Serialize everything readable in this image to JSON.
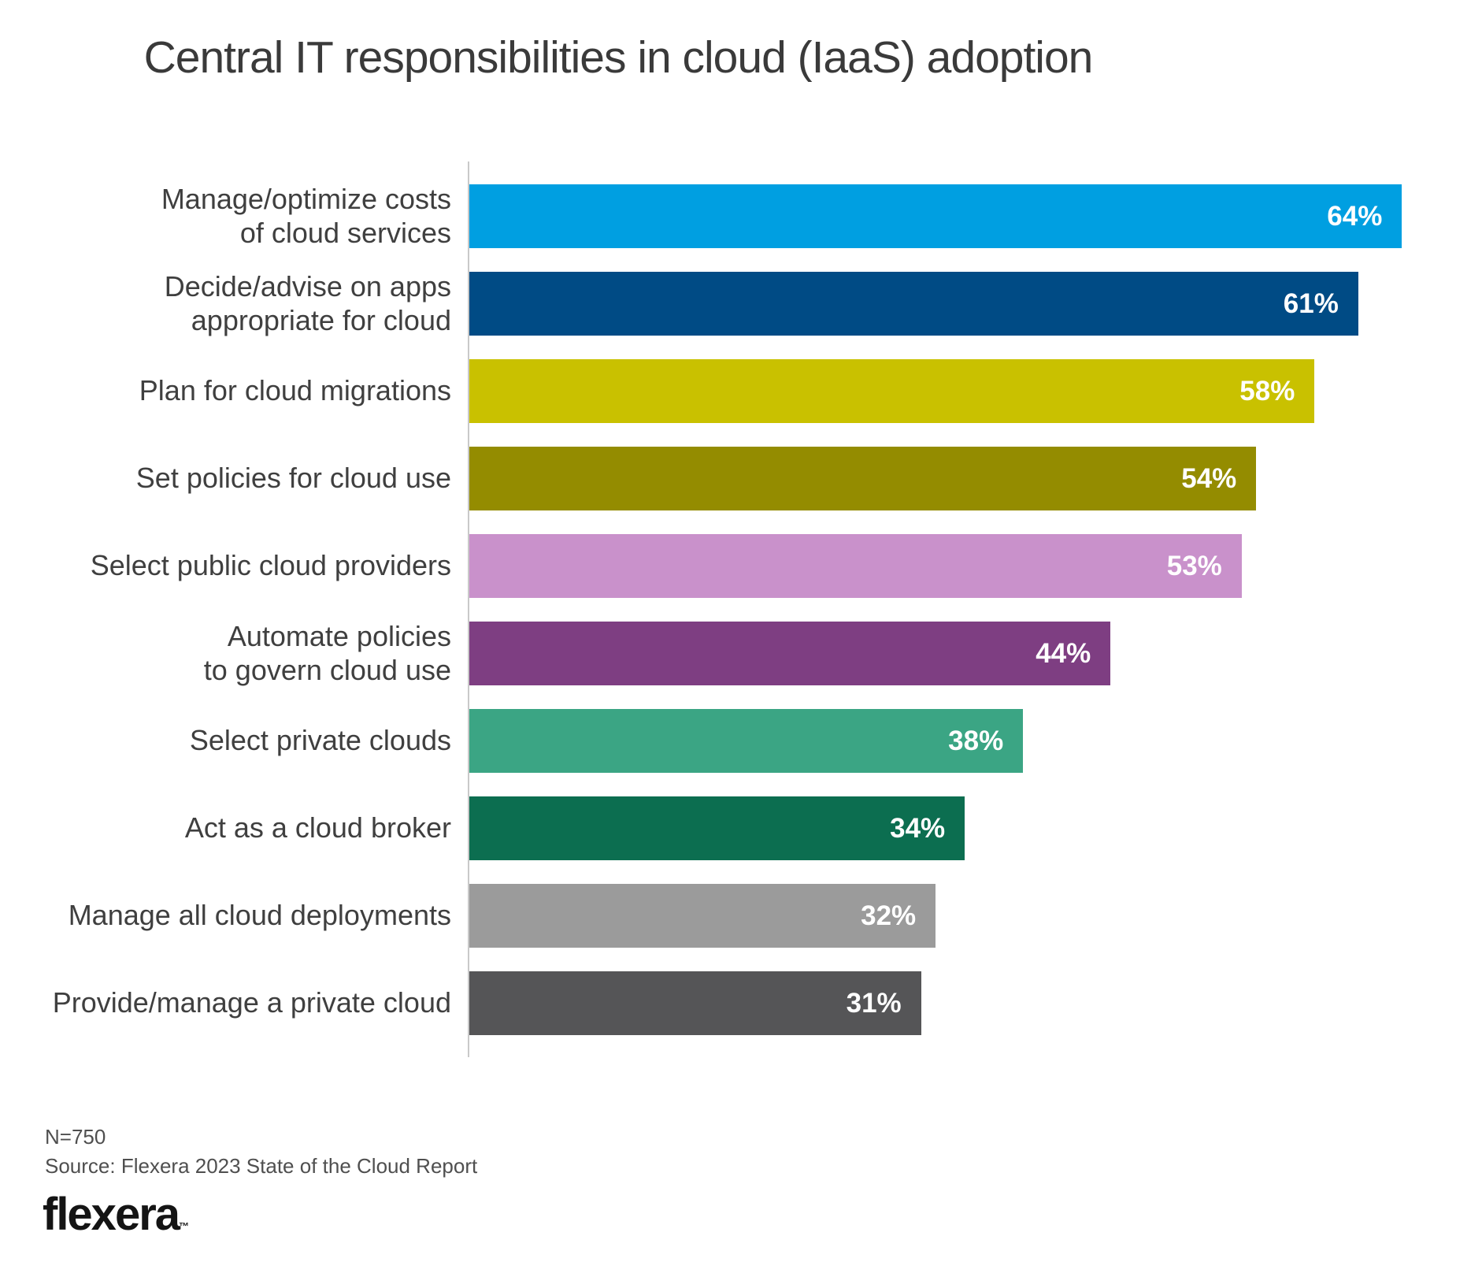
{
  "title": "Central IT responsibilities in cloud (IaaS) adoption",
  "chart_data": {
    "type": "bar",
    "orientation": "horizontal",
    "title": "Central IT responsibilities in cloud (IaaS) adoption",
    "categories": [
      "Manage/optimize costs\nof cloud services",
      "Decide/advise on apps\nappropriate for cloud",
      "Plan for cloud migrations",
      "Set policies for cloud use",
      "Select public cloud providers",
      "Automate policies\nto govern cloud use",
      "Select private clouds",
      "Act as a cloud broker",
      "Manage all cloud deployments",
      "Provide/manage a private cloud"
    ],
    "values": [
      64,
      61,
      58,
      54,
      53,
      44,
      38,
      34,
      32,
      31
    ],
    "value_labels": [
      "64%",
      "61%",
      "58%",
      "54%",
      "53%",
      "44%",
      "38%",
      "34%",
      "32%",
      "31%"
    ],
    "unit": "%",
    "xlabel": "",
    "ylabel": "",
    "xlim": [
      0,
      69.6
    ],
    "grid": false,
    "legend": "none",
    "value_label_position": "inside-end",
    "value_label_color": "#FFFFFF",
    "bar_colors": [
      "#009FE1",
      "#004B85",
      "#C9C100",
      "#948C00",
      "#C991CB",
      "#7E3E82",
      "#3BA584",
      "#0C6E50",
      "#9B9B9B",
      "#555557"
    ],
    "label_color": "#3F3F3F",
    "axis_line_color": "#C9C9C9"
  },
  "footer": {
    "n_label": "N=750",
    "source": "Source: Flexera 2023 State of the Cloud Report",
    "logo_text": "flexera",
    "logo_tm": "™"
  }
}
